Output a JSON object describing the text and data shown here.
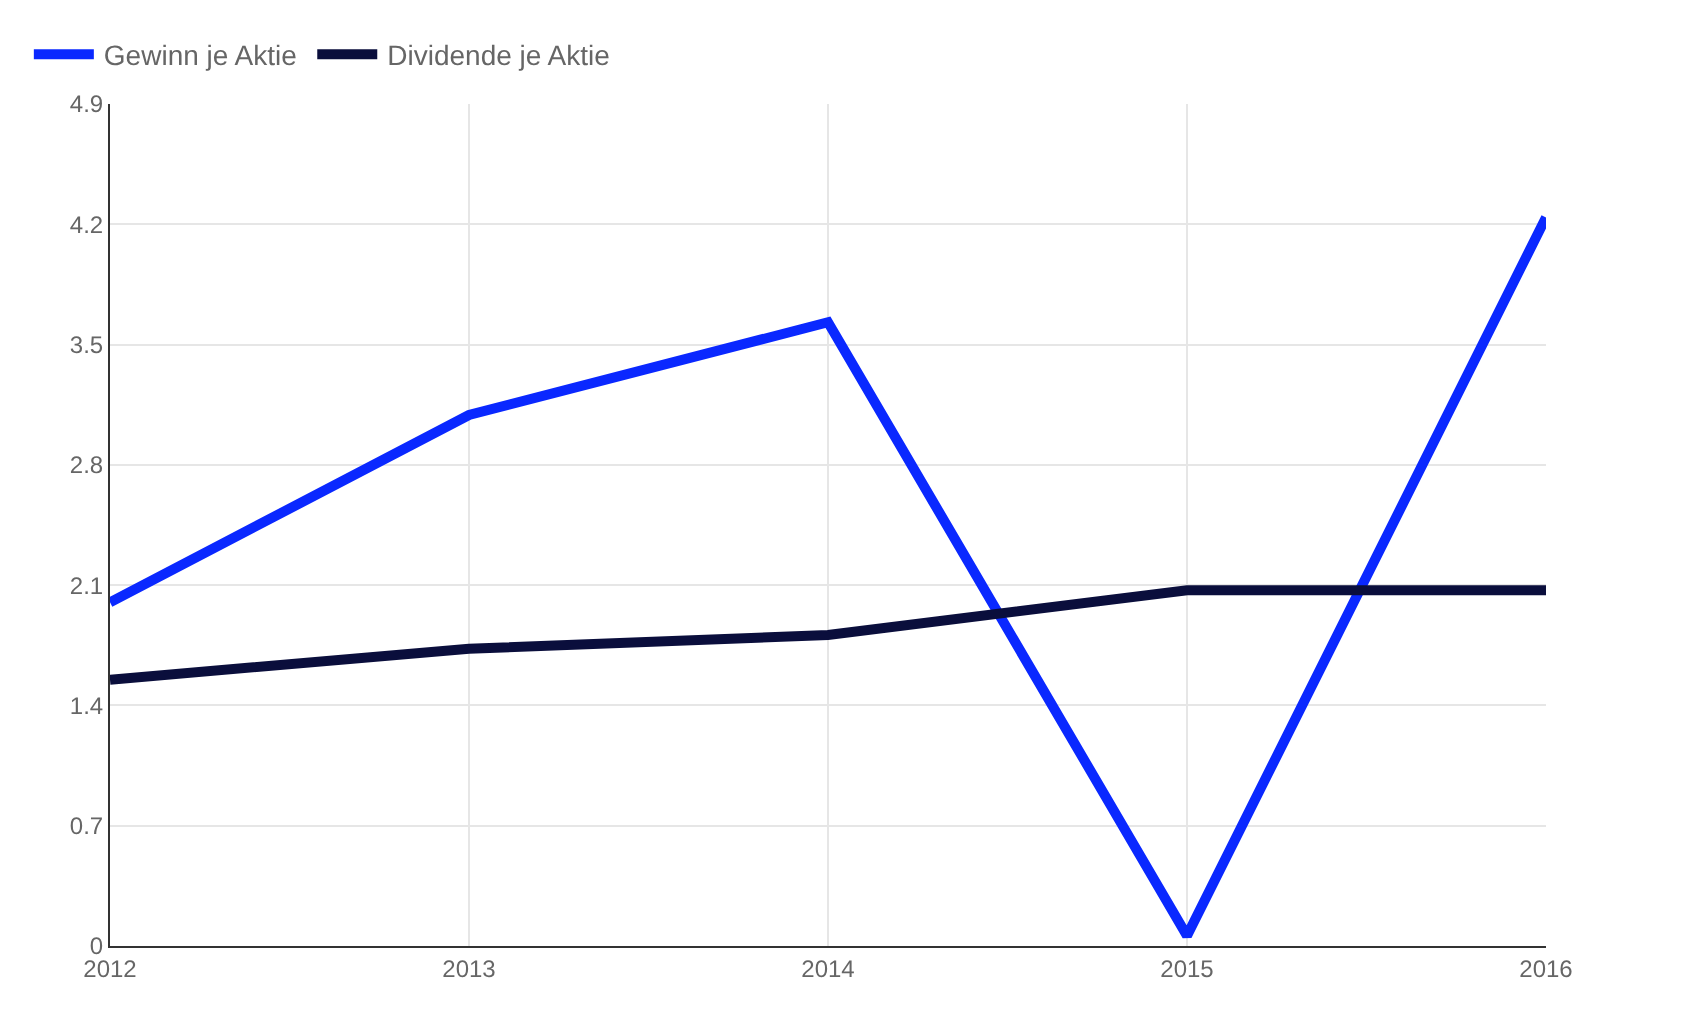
{
  "chart_data": {
    "type": "line",
    "x": [
      2012,
      2013,
      2014,
      2015,
      2016
    ],
    "series": [
      {
        "name": "Gewinn je Aktie",
        "color": "#0a28ff",
        "values": [
          2.0,
          3.09,
          3.63,
          0.06,
          4.24
        ]
      },
      {
        "name": "Dividende je Aktie",
        "color": "#0a0e3c",
        "values": [
          1.55,
          1.73,
          1.81,
          2.07,
          2.07
        ]
      }
    ],
    "xlim": [
      2012,
      2016
    ],
    "xticks": [
      2012,
      2013,
      2014,
      2015,
      2016
    ],
    "ylim": [
      0,
      4.9
    ],
    "yticks": [
      0,
      0.7,
      1.4,
      2.1,
      2.8,
      3.5,
      4.2,
      4.9
    ],
    "grid": true,
    "legend": "top left",
    "marker": "none",
    "line_style": "solid"
  }
}
